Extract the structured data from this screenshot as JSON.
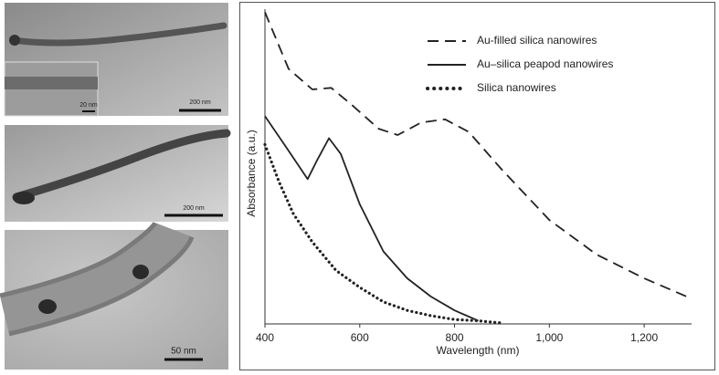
{
  "chart_data": {
    "type": "line",
    "xlabel": "Wavelength (nm)",
    "ylabel": "Absorbance (a.u.)",
    "xlim": [
      400,
      1300
    ],
    "ylim": [
      0,
      1
    ],
    "xticks": [
      400,
      600,
      800,
      {
        "value": 1000,
        "label": "1,000"
      },
      {
        "value": 1200,
        "label": "1,200"
      }
    ],
    "series": [
      {
        "name": "Au-filled silica nanowires",
        "color": "#222222",
        "dash": "dashed",
        "x": [
          400,
          450,
          500,
          540,
          580,
          640,
          680,
          730,
          780,
          830,
          900,
          1000,
          1100,
          1200,
          1300
        ],
        "values": [
          0.99,
          0.81,
          0.745,
          0.75,
          0.7,
          0.62,
          0.6,
          0.64,
          0.65,
          0.61,
          0.49,
          0.33,
          0.22,
          0.145,
          0.08
        ]
      },
      {
        "name": "Au–silica peapod nanowires",
        "color": "#222222",
        "dash": "solid",
        "x": [
          400,
          450,
          490,
          510,
          535,
          560,
          600,
          650,
          700,
          750,
          800,
          850
        ],
        "values": [
          0.66,
          0.55,
          0.46,
          0.52,
          0.59,
          0.54,
          0.38,
          0.23,
          0.145,
          0.087,
          0.043,
          0.01
        ]
      },
      {
        "name": "Silica nanowires",
        "color": "#222222",
        "dash": "dotted",
        "x": [
          400,
          430,
          460,
          500,
          550,
          600,
          650,
          700,
          750,
          800,
          850,
          900
        ],
        "values": [
          0.57,
          0.45,
          0.35,
          0.26,
          0.17,
          0.116,
          0.07,
          0.043,
          0.026,
          0.014,
          0.01,
          0.003
        ]
      }
    ]
  },
  "images": [
    {
      "scale_bars": [
        "20 nm",
        "200 nm"
      ]
    },
    {
      "scale_bars": [
        "200 nm"
      ]
    },
    {
      "scale_bars": [
        "50 nm"
      ]
    }
  ]
}
